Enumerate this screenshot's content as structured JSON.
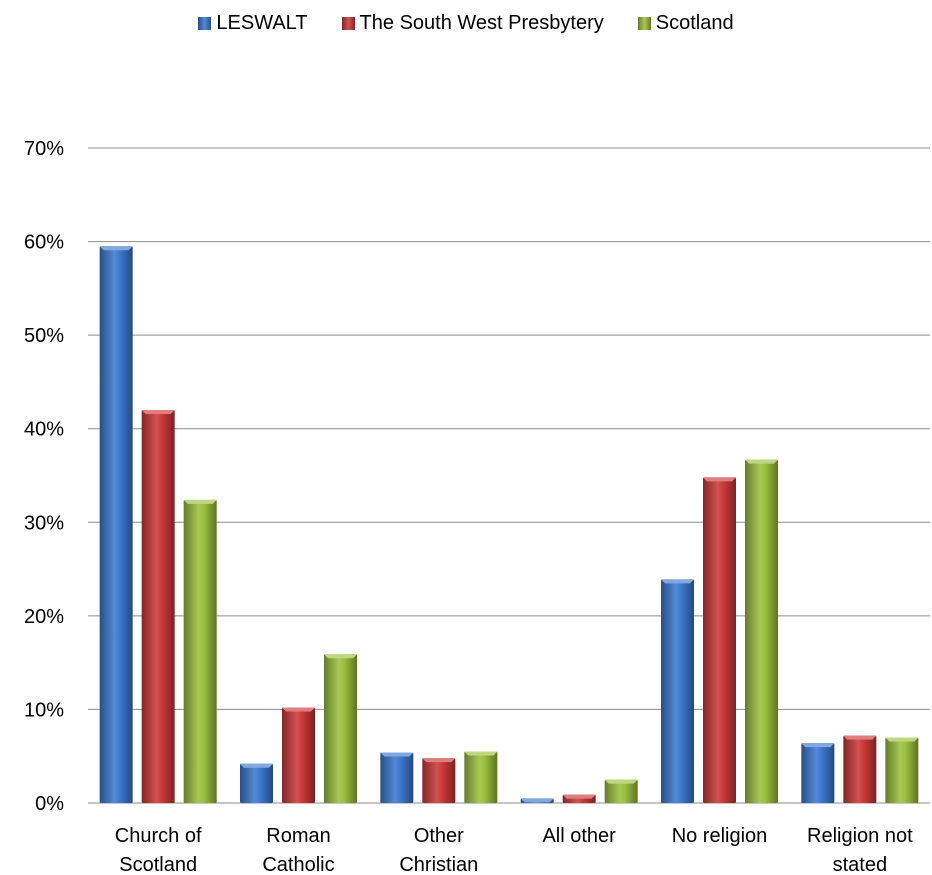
{
  "chart_data": {
    "type": "bar",
    "categories": [
      [
        "Church of",
        "Scotland"
      ],
      [
        "Roman",
        "Catholic"
      ],
      [
        "Other",
        "Christian"
      ],
      [
        "All other"
      ],
      [
        "No religion"
      ],
      [
        "Religion not",
        "stated"
      ]
    ],
    "series": [
      {
        "name": "LESWALT",
        "values": [
          59.5,
          4.2,
          5.4,
          0.5,
          23.9,
          6.4
        ],
        "color": "#3d7ad0"
      },
      {
        "name": "The South West Presbytery",
        "values": [
          42.0,
          10.2,
          4.8,
          0.9,
          34.8,
          7.2
        ],
        "color": "#cc3a3a"
      },
      {
        "name": "Scotland",
        "values": [
          32.4,
          15.9,
          5.5,
          2.5,
          36.7,
          7.0
        ],
        "color": "#9cc13f"
      }
    ],
    "ylim": [
      0,
      70
    ],
    "yticks": [
      "0%",
      "10%",
      "20%",
      "30%",
      "40%",
      "50%",
      "60%",
      "70%"
    ],
    "grid": true,
    "legend_position": "top"
  }
}
